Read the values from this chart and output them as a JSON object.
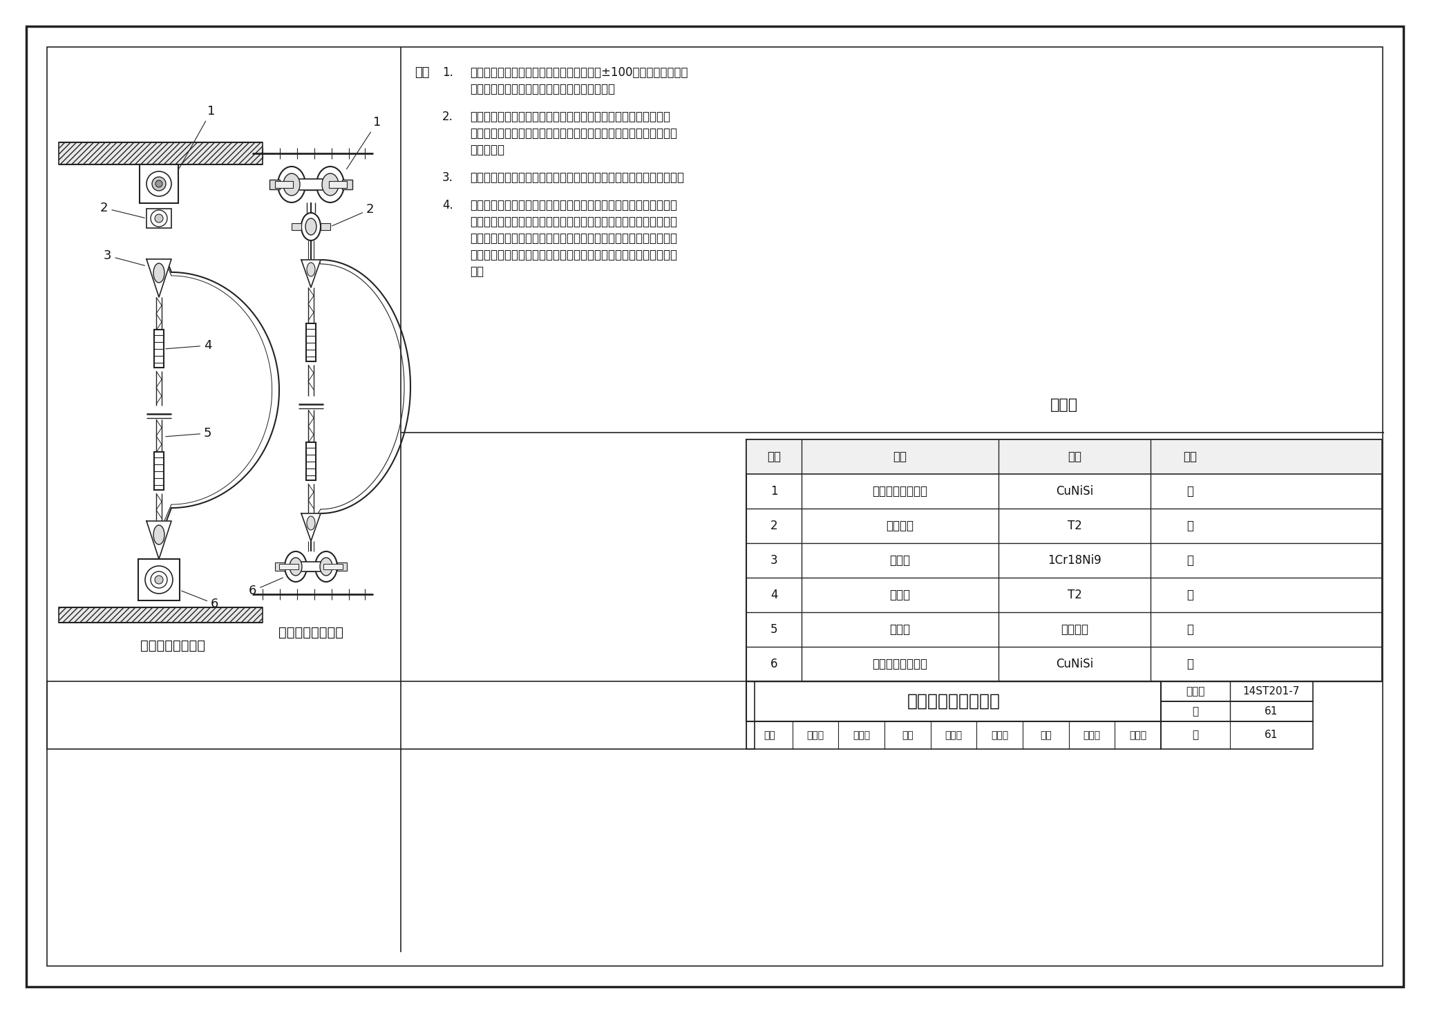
{
  "bg_color": "#ffffff",
  "border_color": "#111111",
  "line_color": "#222222",
  "title": "柔性悬挂吊弦安装图",
  "fig_num": "14ST201-7",
  "page": "61",
  "note_header": "注：",
  "notes": [
    [
      "1.",
      "整体吊弦布置应符合设计要求，位置偏差为±100，吊弦无散股和断\n股现象。线夹连接螺栓紧固力矩符合设计要求。"
    ],
    [
      "2.",
      "本图为双承双导接触网结构吊弦用于单承单导接触网结构时，双承\n力索吊弦线夹、双接触线吊钩线夹改用单承力索吊弦线夹、单接触线\n吊钩线夹。"
    ],
    [
      "3.",
      "吊弦回头统一，上下平行平时吊弦应在同一断面内，吊弦顺直、美观。"
    ],
    [
      "4.",
      "在平均温度时，吊弦顺线路应垂直安装；温度变化时，其偏移量应符\n合设计要求；承力索、接触线材质不同时，偏移量应符合设计要求，\n承力索、接触线采用同一材质时，在任何温度下均应垂直安装；直线\n区段吊弦线夹应端正、牢固，曲线区段吊弦线夹应垂直于接触线工作\n面。"
    ]
  ],
  "table_title": "材料表",
  "table_headers": [
    "序号",
    "名称",
    "材料",
    "单位"
  ],
  "table_rows": [
    [
      "1",
      "双承力索吊弦线夹",
      "CuNiSi",
      "套"
    ],
    [
      "2",
      "连接线夹",
      "T2",
      "件"
    ],
    [
      "3",
      "心形环",
      "1Cr18Ni9",
      "件"
    ],
    [
      "4",
      "钳压管",
      "T2",
      "件"
    ],
    [
      "5",
      "吊弦线",
      "青铜绞线",
      "根"
    ],
    [
      "6",
      "双接触线吊弦线夹",
      "CuNiSi",
      "套"
    ]
  ],
  "left_label": "吊弦安装侧立面图",
  "right_label": "吊弦安装正立面图",
  "bottom_labels": [
    "审核",
    "葛义飞",
    "高幻子",
    "校对",
    "蔡志刚",
    "蔡松川",
    "设计",
    "张凌元",
    "张运之",
    "页",
    "61"
  ],
  "tuzhi_label": "图集号",
  "page_label": "页"
}
